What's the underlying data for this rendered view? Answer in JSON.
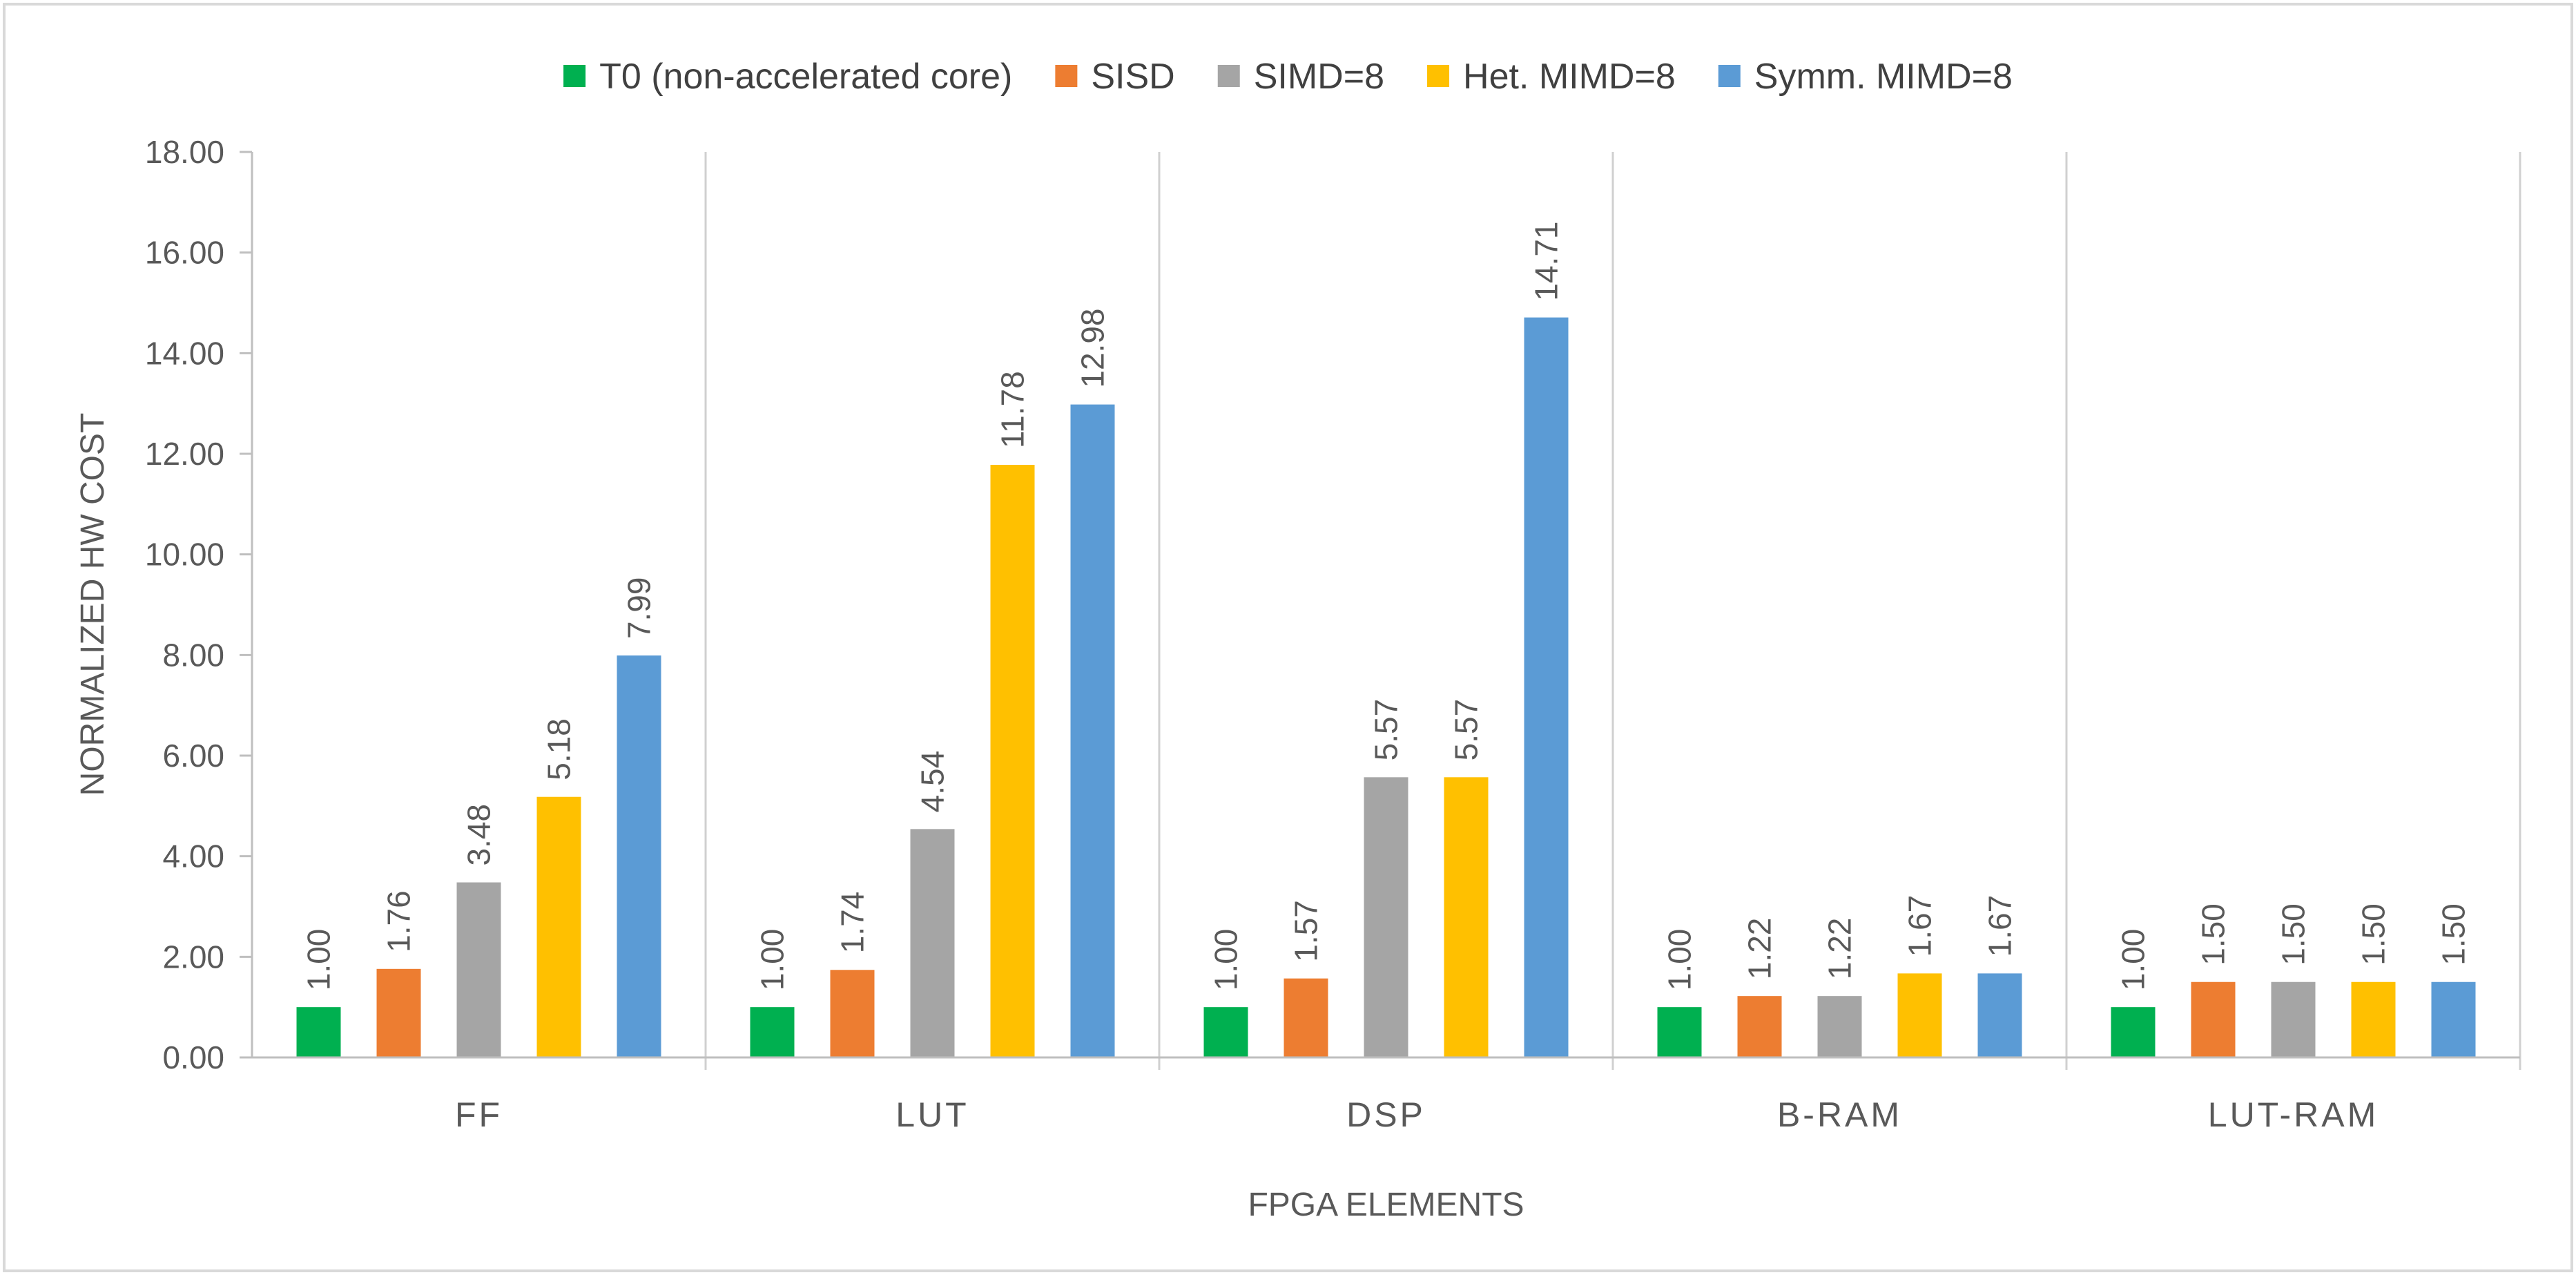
{
  "chart_data": {
    "type": "bar",
    "title": "",
    "xlabel": "FPGA ELEMENTS",
    "ylabel": "NORMALIZED HW COST",
    "ylim": [
      0,
      18
    ],
    "ytick_step": 2,
    "ytick_labels": [
      "0.00",
      "2.00",
      "4.00",
      "6.00",
      "8.00",
      "10.00",
      "12.00",
      "14.00",
      "16.00",
      "18.00"
    ],
    "categories": [
      "FF",
      "LUT",
      "DSP",
      "B-RAM",
      "LUT-RAM"
    ],
    "legend_position": "top-center",
    "series": [
      {
        "name": "T0 (non-accelerated core)",
        "color": "#00b050",
        "values": [
          1.0,
          1.0,
          1.0,
          1.0,
          1.0
        ],
        "labels": [
          "1.00",
          "1.00",
          "1.00",
          "1.00",
          "1.00"
        ]
      },
      {
        "name": "SISD",
        "color": "#ed7d31",
        "values": [
          1.76,
          1.74,
          1.57,
          1.22,
          1.5
        ],
        "labels": [
          "1.76",
          "1.74",
          "1.57",
          "1.22",
          "1.50"
        ]
      },
      {
        "name": "SIMD=8",
        "color": "#a5a5a5",
        "values": [
          3.48,
          4.54,
          5.57,
          1.22,
          1.5
        ],
        "labels": [
          "3.48",
          "4.54",
          "5.57",
          "1.22",
          "1.50"
        ]
      },
      {
        "name": "Het. MIMD=8",
        "color": "#ffc000",
        "values": [
          5.18,
          11.78,
          5.57,
          1.67,
          1.5
        ],
        "labels": [
          "5.18",
          "11.78",
          "5.57",
          "1.67",
          "1.50"
        ]
      },
      {
        "name": "Symm. MIMD=8",
        "color": "#5b9bd5",
        "values": [
          7.99,
          12.98,
          14.71,
          1.67,
          1.5
        ],
        "labels": [
          "7.99",
          "12.98",
          "14.71",
          "1.67",
          "1.50"
        ]
      }
    ]
  }
}
